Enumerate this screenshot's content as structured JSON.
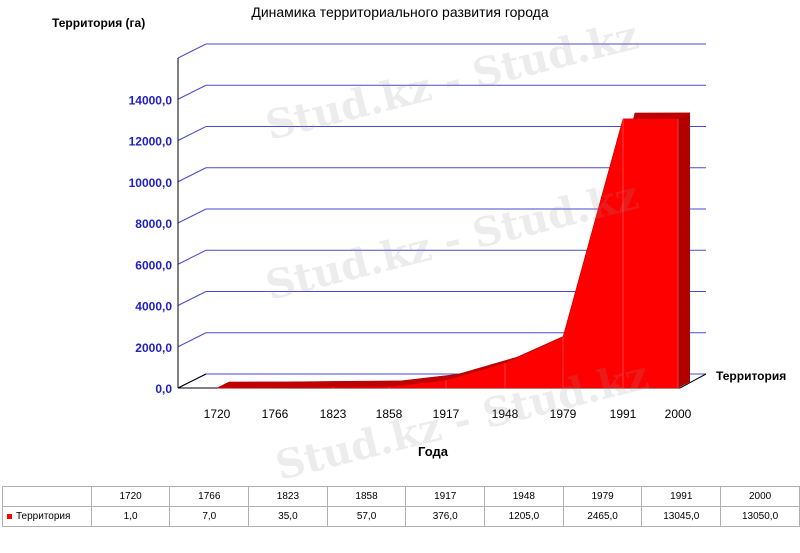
{
  "chart_data": {
    "type": "area",
    "title": "Динамика территориального развития города",
    "ylabel": "Территория (га)",
    "xlabel": "Года",
    "categories": [
      "1720",
      "1766",
      "1823",
      "1858",
      "1917",
      "1948",
      "1979",
      "1991",
      "2000"
    ],
    "y_ticks": [
      "0,0",
      "2000,0",
      "4000,0",
      "6000,0",
      "8000,0",
      "10000,0",
      "12000,0",
      "14000,0"
    ],
    "ylim": [
      0,
      16000
    ],
    "grid": true,
    "series": [
      {
        "name": "Территория",
        "values": [
          1.0,
          7.0,
          35.0,
          57.0,
          376.0,
          1205.0,
          2465.0,
          13045.0,
          13050.0
        ],
        "value_labels": [
          "1,0",
          "7,0",
          "35,0",
          "57,0",
          "376,0",
          "1205,0",
          "2465,0",
          "13045,0",
          "13050,0"
        ],
        "color": "#ff0000"
      }
    ]
  },
  "table": {
    "series_name": "Территория"
  },
  "watermark": "Stud.kz - Stud.kz"
}
